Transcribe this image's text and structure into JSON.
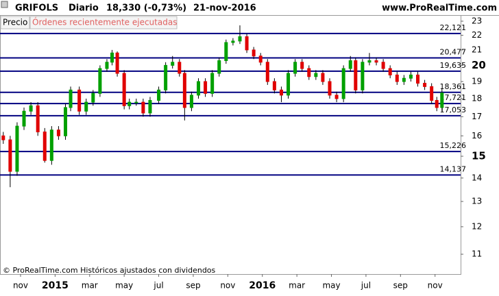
{
  "chart_data": {
    "type": "candlestick",
    "header": {
      "symbol": "GRIFOLS",
      "period": "Diario",
      "last": "18,330 (-0,73%)",
      "date": "21-nov-2016",
      "site": "www.ProRealTime.com"
    },
    "tabs": [
      "Precio",
      "Órdenes recientemente ejecutadas"
    ],
    "footer": "© ProRealTime.com  Históricos ajustados con dividendos",
    "log_scale": true,
    "up_color": "#00a000",
    "down_color": "#e00000",
    "level_color": "#000080",
    "ylim": [
      10.33,
      23.45
    ],
    "yticks": [
      11,
      12,
      13,
      14,
      15,
      16,
      17,
      18,
      19,
      20,
      21,
      22,
      23
    ],
    "xlim": [
      -1.19,
      25.48
    ],
    "xticks": [
      {
        "value": 0,
        "label": "nov"
      },
      {
        "value": 2,
        "label": "2015"
      },
      {
        "value": 4,
        "label": "mar"
      },
      {
        "value": 6,
        "label": "may"
      },
      {
        "value": 8,
        "label": "jul"
      },
      {
        "value": 10,
        "label": "sep"
      },
      {
        "value": 12,
        "label": "nov"
      },
      {
        "value": 14,
        "label": "2016"
      },
      {
        "value": 16,
        "label": "mar"
      },
      {
        "value": 18,
        "label": "may"
      },
      {
        "value": 20,
        "label": "jul"
      },
      {
        "value": 22,
        "label": "sep"
      },
      {
        "value": 24,
        "label": "nov"
      }
    ],
    "levels": [
      {
        "value": 22.121,
        "label": "22,121"
      },
      {
        "value": 20.477,
        "label": "20,477"
      },
      {
        "value": 19.635,
        "label": "19,635"
      },
      {
        "value": 18.361,
        "label": "18,361"
      },
      {
        "value": 17.721,
        "label": "17,721"
      },
      {
        "value": 17.053,
        "label": "17,053"
      },
      {
        "value": 15.226,
        "label": "15,226"
      },
      {
        "value": 14.137,
        "label": "14,137"
      }
    ],
    "x": [
      -1.0,
      -0.6,
      -0.2,
      0.2,
      0.6,
      1.0,
      1.4,
      1.8,
      2.2,
      2.6,
      2.9,
      3.4,
      3.8,
      4.2,
      4.6,
      5.0,
      5.3,
      5.6,
      6.0,
      6.3,
      6.7,
      7.1,
      7.5,
      8.0,
      8.4,
      8.8,
      9.2,
      9.5,
      9.9,
      10.3,
      10.7,
      11.1,
      11.5,
      11.9,
      12.3,
      12.7,
      13.1,
      13.5,
      13.9,
      14.3,
      14.7,
      15.1,
      15.5,
      15.9,
      16.3,
      16.7,
      17.1,
      17.5,
      17.9,
      18.3,
      18.7,
      19.1,
      19.4,
      19.8,
      20.2,
      20.6,
      21.0,
      21.4,
      21.8,
      22.2,
      22.6,
      23.0,
      23.4,
      23.8,
      24.1,
      24.4
    ],
    "open": [
      16.0,
      15.8,
      14.3,
      16.5,
      17.3,
      17.6,
      16.2,
      14.8,
      16.3,
      16.0,
      17.5,
      18.5,
      17.3,
      17.8,
      18.3,
      19.8,
      20.2,
      20.8,
      19.5,
      17.6,
      17.8,
      17.8,
      17.2,
      17.9,
      18.5,
      20.0,
      20.2,
      19.5,
      17.5,
      18.2,
      19.0,
      18.3,
      19.5,
      20.3,
      21.5,
      21.6,
      21.9,
      21.0,
      20.6,
      20.2,
      19.0,
      18.5,
      18.2,
      19.5,
      20.2,
      19.8,
      19.3,
      19.5,
      19.0,
      18.2,
      18.0,
      19.8,
      20.3,
      18.5,
      20.2,
      20.3,
      20.2,
      19.8,
      19.4,
      19.0,
      19.2,
      19.4,
      18.9,
      18.7,
      17.9,
      17.5
    ],
    "high": [
      16.2,
      16.0,
      16.7,
      17.5,
      17.8,
      17.8,
      16.4,
      16.5,
      16.5,
      17.7,
      18.7,
      18.7,
      18.0,
      18.5,
      20.0,
      20.4,
      21.0,
      20.9,
      19.7,
      18.0,
      18.0,
      18.0,
      18.1,
      18.7,
      20.2,
      20.6,
      20.4,
      19.7,
      18.4,
      19.2,
      19.2,
      19.7,
      20.5,
      21.7,
      21.8,
      22.7,
      22.1,
      21.2,
      20.8,
      20.4,
      19.2,
      18.7,
      19.7,
      20.4,
      20.4,
      20.0,
      19.7,
      19.7,
      19.2,
      18.4,
      20.0,
      20.6,
      20.5,
      20.4,
      20.8,
      20.5,
      20.4,
      20.0,
      19.6,
      19.4,
      19.6,
      19.6,
      19.1,
      18.9,
      18.1,
      18.6
    ],
    "low": [
      15.6,
      13.6,
      14.1,
      16.3,
      17.1,
      16.0,
      14.7,
      14.6,
      15.8,
      15.8,
      17.3,
      17.1,
      17.1,
      17.6,
      18.1,
      19.6,
      20.0,
      19.3,
      17.4,
      17.4,
      17.6,
      17.0,
      17.0,
      17.7,
      18.3,
      19.8,
      19.3,
      16.8,
      17.3,
      18.0,
      18.1,
      18.1,
      19.3,
      20.1,
      21.3,
      21.4,
      20.8,
      20.4,
      20.0,
      18.8,
      18.3,
      17.8,
      18.0,
      19.3,
      19.6,
      19.1,
      19.1,
      18.8,
      18.0,
      17.8,
      17.8,
      19.6,
      18.3,
      18.3,
      20.0,
      20.0,
      19.6,
      19.2,
      18.8,
      18.8,
      19.0,
      18.7,
      18.5,
      17.7,
      17.3,
      17.3
    ],
    "close": [
      15.8,
      14.3,
      16.5,
      17.3,
      17.6,
      16.2,
      14.8,
      16.3,
      16.0,
      17.5,
      18.5,
      17.3,
      17.8,
      18.3,
      19.8,
      20.2,
      20.8,
      19.5,
      17.6,
      17.8,
      17.8,
      17.2,
      17.9,
      18.5,
      20.0,
      20.2,
      19.5,
      17.5,
      18.2,
      19.0,
      18.3,
      19.5,
      20.3,
      21.5,
      21.6,
      21.9,
      21.0,
      20.6,
      20.2,
      19.0,
      18.5,
      18.2,
      19.5,
      20.2,
      19.8,
      19.3,
      19.5,
      19.0,
      18.2,
      18.0,
      19.8,
      20.3,
      18.5,
      20.2,
      20.3,
      20.2,
      19.8,
      19.4,
      19.0,
      19.2,
      19.4,
      18.9,
      18.7,
      17.9,
      17.5,
      18.33
    ]
  }
}
